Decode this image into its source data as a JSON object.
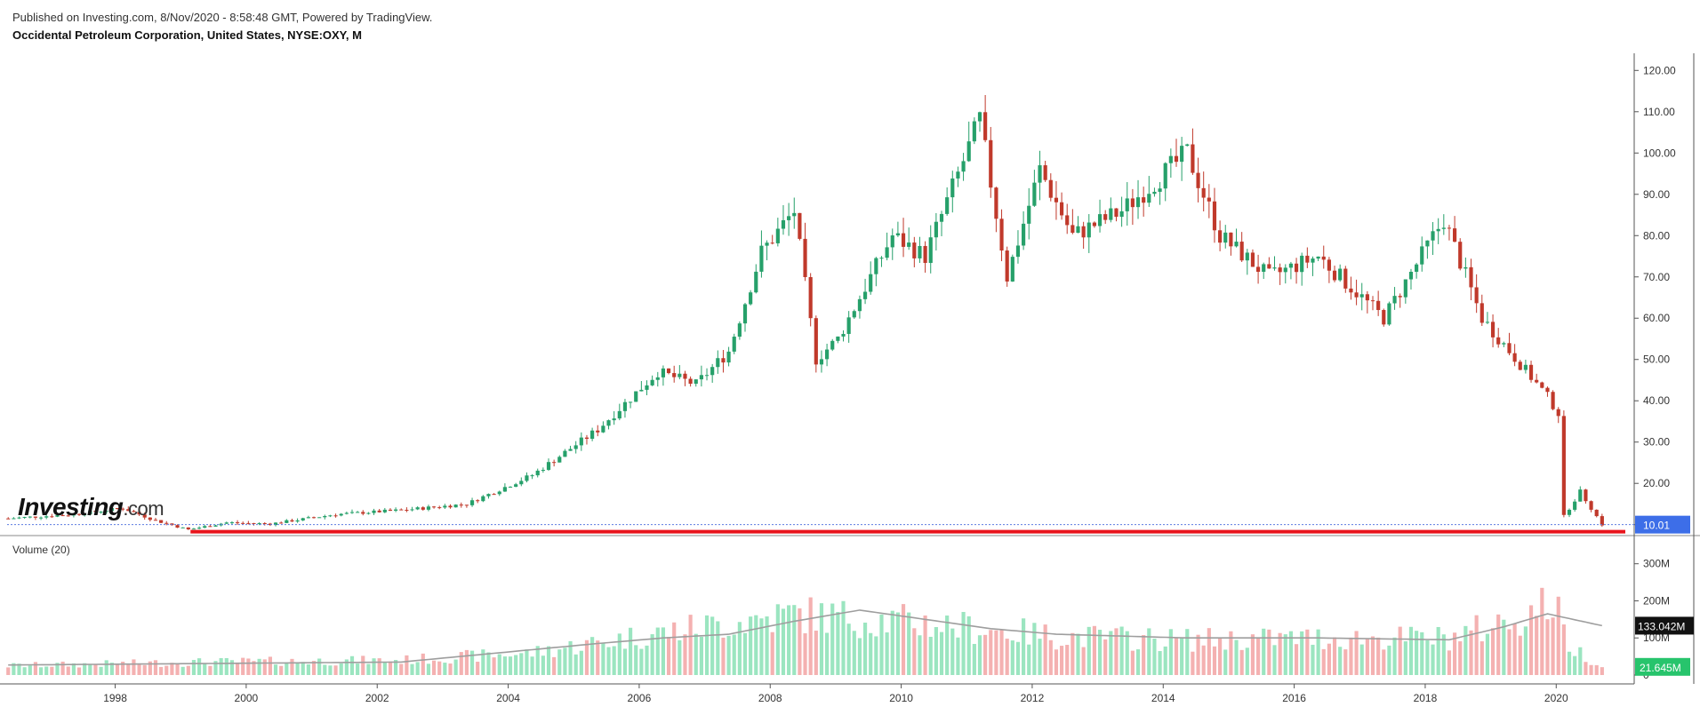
{
  "header": {
    "published": "Published on Investing.com, 8/Nov/2020 - 8:58:48 GMT, Powered by TradingView.",
    "symbol": "Occidental Petroleum Corporation, United States, NYSE:OXY, M"
  },
  "logo": {
    "text": "Investing",
    "suffix": ".com"
  },
  "volume_title": "Volume (20)",
  "colors": {
    "up": "#26a06a",
    "down": "#c0392b",
    "vol_up": "#9be5c0",
    "vol_down": "#f4b1b1",
    "ma": "#9e9e9e",
    "support": "#e8141c",
    "last_price_line": "#5b7be0",
    "last_price_bg": "#3d6ee8",
    "vol_ma_bg": "#111111",
    "vol_last_bg": "#27c46c"
  },
  "chart_data": {
    "type": "candlestick",
    "title": "Occidental Petroleum Corporation, United States, NYSE:OXY, M",
    "x_tick_labels": [
      "1998",
      "2000",
      "2002",
      "2004",
      "2006",
      "2008",
      "2010",
      "2012",
      "2014",
      "2016",
      "2018",
      "2020"
    ],
    "y_tick_labels": [
      "10.00",
      "20.00",
      "30.00",
      "40.00",
      "50.00",
      "60.00",
      "70.00",
      "80.00",
      "90.00",
      "100.00",
      "110.00",
      "120.00"
    ],
    "ylim": [
      8,
      122
    ],
    "last_price_label": "10.01",
    "last_price": 10.01,
    "support_level": 8.3,
    "price_anchors": [
      [
        "1996-06",
        11.5
      ],
      [
        "1997-06",
        12.5
      ],
      [
        "1998-03",
        14.0
      ],
      [
        "1998-09",
        11.0
      ],
      [
        "1999-03",
        8.8
      ],
      [
        "1999-10",
        10.5
      ],
      [
        "2000-06",
        10.2
      ],
      [
        "2001-06",
        12.5
      ],
      [
        "2002-06",
        13.5
      ],
      [
        "2003-06",
        15.0
      ],
      [
        "2004-06",
        22.0
      ],
      [
        "2005-06",
        33.0
      ],
      [
        "2006-05",
        47.0
      ],
      [
        "2006-12",
        44.0
      ],
      [
        "2007-06",
        52.0
      ],
      [
        "2007-12",
        76.0
      ],
      [
        "2008-06",
        86.0
      ],
      [
        "2008-10",
        50.0
      ],
      [
        "2009-02",
        55.0
      ],
      [
        "2009-12",
        80.0
      ],
      [
        "2010-06",
        75.0
      ],
      [
        "2011-04",
        108.0
      ],
      [
        "2011-09",
        70.0
      ],
      [
        "2012-03",
        96.0
      ],
      [
        "2012-09",
        80.0
      ],
      [
        "2013-06",
        86.0
      ],
      [
        "2014-06",
        100.0
      ],
      [
        "2014-12",
        80.0
      ],
      [
        "2015-09",
        70.0
      ],
      [
        "2016-06",
        75.0
      ],
      [
        "2017-06",
        60.0
      ],
      [
        "2018-05",
        84.0
      ],
      [
        "2018-12",
        60.0
      ],
      [
        "2019-12",
        41.0
      ],
      [
        "2020-02",
        37.0
      ],
      [
        "2020-03",
        12.0
      ],
      [
        "2020-06",
        18.0
      ],
      [
        "2020-10",
        10.01
      ]
    ],
    "volume": {
      "y_tick_labels": [
        "0",
        "100M",
        "200M",
        "300M"
      ],
      "ylim": [
        0,
        340
      ],
      "unit": "M",
      "ma_label": "133.042M",
      "last_label": "21.645M",
      "volume_anchors": [
        [
          "1996-06",
          25
        ],
        [
          "1999-06",
          35
        ],
        [
          "2002-06",
          40
        ],
        [
          "2004-06",
          60
        ],
        [
          "2006-06",
          115
        ],
        [
          "2008-06",
          165
        ],
        [
          "2010-06",
          140
        ],
        [
          "2012-06",
          105
        ],
        [
          "2014-06",
          95
        ],
        [
          "2016-06",
          100
        ],
        [
          "2018-06",
          100
        ],
        [
          "2019-06",
          150
        ],
        [
          "2020-01",
          200
        ],
        [
          "2020-04",
          80
        ],
        [
          "2020-10",
          22
        ]
      ],
      "ma_anchors": [
        [
          "1996-06",
          27
        ],
        [
          "2002-06",
          35
        ],
        [
          "2005-06",
          85
        ],
        [
          "2006-06",
          100
        ],
        [
          "2007-06",
          110
        ],
        [
          "2008-06",
          145
        ],
        [
          "2009-06",
          175
        ],
        [
          "2010-06",
          150
        ],
        [
          "2011-06",
          125
        ],
        [
          "2012-06",
          110
        ],
        [
          "2014-06",
          100
        ],
        [
          "2016-06",
          100
        ],
        [
          "2018-06",
          95
        ],
        [
          "2019-04",
          130
        ],
        [
          "2019-12",
          165
        ],
        [
          "2020-10",
          133.042
        ]
      ]
    }
  }
}
